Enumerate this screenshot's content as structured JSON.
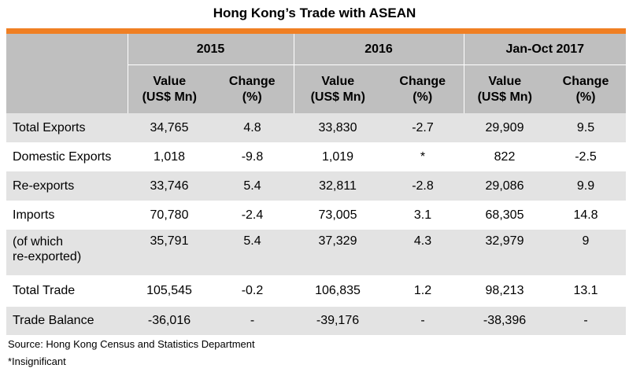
{
  "title": "Hong Kong’s Trade with ASEAN",
  "periods": [
    "2015",
    "2016",
    "Jan-Oct 2017"
  ],
  "subheaders": {
    "value_line1": "Value",
    "value_line2": "(US$ Mn)",
    "change_line1": "Change",
    "change_line2": "(%)"
  },
  "rows": [
    {
      "label": "Total Exports",
      "values": [
        "34,765",
        "4.8",
        "33,830",
        "-2.7",
        "29,909",
        "9.5"
      ]
    },
    {
      "label": "Domestic Exports",
      "values": [
        "1,018",
        "-9.8",
        "1,019",
        "*",
        "822",
        "-2.5"
      ]
    },
    {
      "label": "Re-exports",
      "values": [
        "33,746",
        "5.4",
        "32,811",
        "-2.8",
        "29,086",
        "9.9"
      ]
    },
    {
      "label": "Imports",
      "values": [
        "70,780",
        "-2.4",
        "73,005",
        "3.1",
        "68,305",
        "14.8"
      ]
    },
    {
      "label_line1": "(of which",
      "label_line2": "re-exported)",
      "values": [
        "35,791",
        "5.4",
        "37,329",
        "4.3",
        "32,979",
        "9"
      ]
    },
    {
      "label": "Total Trade",
      "values": [
        "105,545",
        "-0.2",
        "106,835",
        "1.2",
        "98,213",
        "13.1"
      ]
    },
    {
      "label": "Trade Balance",
      "values": [
        "-36,016",
        "-",
        "-39,176",
        "-",
        "-38,396",
        "-"
      ]
    }
  ],
  "source": "Source: Hong Kong Census and Statistics Department",
  "footnote": "*Insignificant",
  "colors": {
    "accent_rule": "#f07f23",
    "header_bg": "#bfbfbf",
    "shade_bg": "#e3e3e3"
  }
}
